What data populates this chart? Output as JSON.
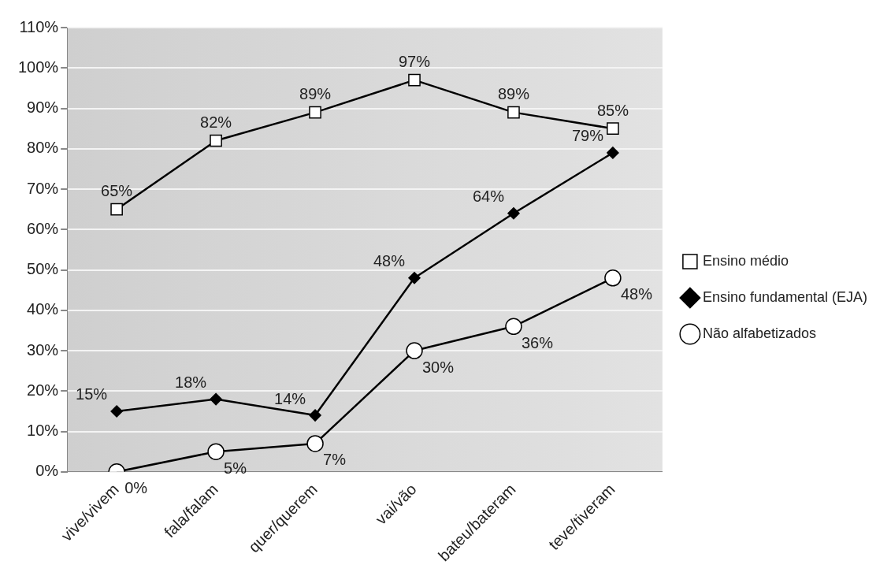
{
  "chart_data": {
    "type": "line",
    "categories": [
      "vive/vivem",
      "fala/falam",
      "quer/querem",
      "vai/vão",
      "bateu/bateram",
      "teve/tiveram"
    ],
    "series": [
      {
        "name": "Ensino médio",
        "color": "#000000",
        "marker": "square",
        "values": [
          65,
          82,
          89,
          97,
          89,
          85
        ],
        "value_labels": [
          "65%",
          "82%",
          "89%",
          "97%",
          "89%",
          "85%"
        ]
      },
      {
        "name": "Ensino fundamental (EJA)",
        "color": "#000000",
        "marker": "diamond",
        "values": [
          15,
          18,
          14,
          48,
          64,
          79
        ],
        "value_labels": [
          "15%",
          "18%",
          "14%",
          "48%",
          "64%",
          "79%"
        ]
      },
      {
        "name": "Não alfabetizados",
        "color": "#000000",
        "marker": "circle",
        "values": [
          0,
          5,
          7,
          30,
          36,
          48
        ],
        "value_labels": [
          "0%",
          "5%",
          "7%",
          "30%",
          "36%",
          "48%"
        ]
      }
    ],
    "ylim": [
      0,
      110
    ],
    "yticks": [
      {
        "value": 0,
        "label": "0%"
      },
      {
        "value": 10,
        "label": "10%"
      },
      {
        "value": 20,
        "label": "20%"
      },
      {
        "value": 30,
        "label": "30%"
      },
      {
        "value": 40,
        "label": "40%"
      },
      {
        "value": 50,
        "label": "50%"
      },
      {
        "value": 60,
        "label": "60%"
      },
      {
        "value": 70,
        "label": "70%"
      },
      {
        "value": 80,
        "label": "80%"
      },
      {
        "value": 90,
        "label": "90%"
      },
      {
        "value": 100,
        "label": "100%"
      },
      {
        "value": 110,
        "label": "110%"
      }
    ],
    "grid": "y",
    "legend": "right",
    "line_style": "solid"
  }
}
